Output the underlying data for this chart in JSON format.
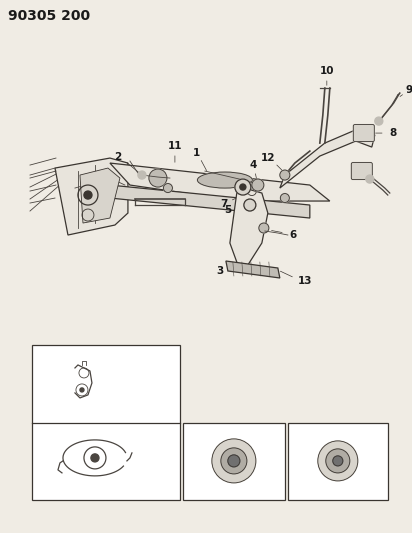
{
  "title": "90305 200",
  "bg_color": "#f0ece4",
  "line_color": "#3a3530",
  "label_color": "#1a1a1a",
  "title_fontsize": 10,
  "label_fontsize": 7.5,
  "sketch_color": "#4a4540",
  "fill_light": "#e8e4dc",
  "fill_mid": "#d8d4cc",
  "fill_dark": "#c0bcb4",
  "box_bg": "#f0ece4",
  "inset_bg": "#e8e4dc"
}
